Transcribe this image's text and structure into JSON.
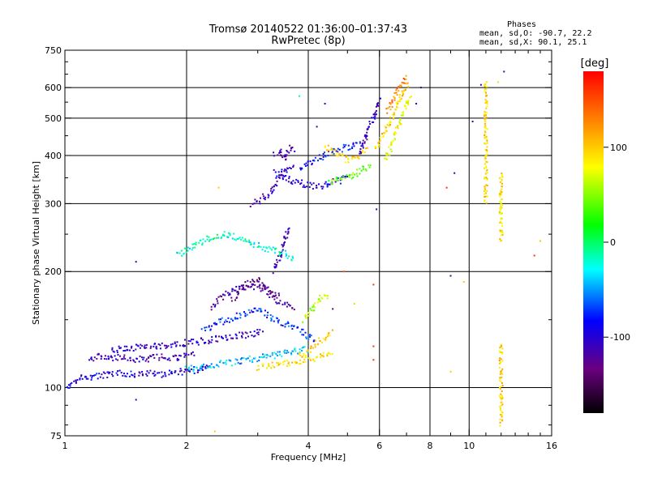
{
  "chart_data": {
    "type": "scatter",
    "title": "Tromsø 20140522 01:36:00–01:37:43",
    "subtitle": "RwPretec (8p)",
    "xlabel": "Frequency [MHz]",
    "ylabel": "Stationary phase Virtual Height [km]",
    "x_scale": "log",
    "y_scale": "log",
    "xlim": [
      1,
      16
    ],
    "ylim": [
      75,
      750
    ],
    "x_ticks": [
      1,
      2,
      4,
      6,
      8,
      10,
      16
    ],
    "x_tick_labels": [
      "1",
      "2",
      "4",
      "6",
      "8",
      "10",
      "16"
    ],
    "y_ticks": [
      75,
      100,
      200,
      300,
      400,
      500,
      600,
      750
    ],
    "y_tick_labels": [
      "75",
      "100",
      "200",
      "300",
      "400",
      "500",
      "600",
      "750"
    ],
    "grid": true,
    "x_gridlines": [
      2,
      4,
      6,
      8,
      10
    ],
    "y_gridlines": [
      100,
      200,
      300,
      400,
      500,
      600
    ],
    "colorbar": {
      "label": "[deg]",
      "range": [
        -180,
        180
      ],
      "ticks": [
        100,
        0,
        -100
      ],
      "tick_labels": [
        "100",
        "0",
        "-100"
      ]
    },
    "stats": {
      "heading": "Phases",
      "line_o": "mean, sd,O: -90.7, 22.2",
      "line_x": "mean, sd,X:  90.1, 25.1"
    },
    "traces": [
      {
        "x": [
          1.0,
          1.05,
          1.1,
          1.2,
          1.3,
          1.4,
          1.5,
          1.6,
          1.7,
          1.8,
          1.9,
          2.0,
          2.1,
          2.2,
          2.3
        ],
        "y": [
          98,
          103,
          106,
          107,
          108,
          109,
          108,
          109,
          108,
          109,
          110,
          110,
          111,
          112,
          113
        ],
        "phase": -95
      },
      {
        "x": [
          1.15,
          1.2,
          1.3,
          1.4,
          1.5,
          1.6,
          1.7,
          1.8,
          1.9,
          2.0,
          2.1
        ],
        "y": [
          118,
          120,
          120,
          119,
          118,
          119,
          120,
          120,
          119,
          121,
          122
        ],
        "phase": -110
      },
      {
        "x": [
          1.3,
          1.5,
          1.7,
          1.9,
          2.1,
          2.3,
          2.5,
          2.8,
          3.1
        ],
        "y": [
          125,
          127,
          128,
          130,
          131,
          133,
          135,
          137,
          140
        ],
        "phase": -105
      },
      {
        "x": [
          2.0,
          2.2,
          2.4,
          2.6,
          2.8,
          3.0,
          3.2,
          3.4,
          3.6,
          3.8,
          4.0
        ],
        "y": [
          112,
          113,
          115,
          116,
          118,
          119,
          121,
          122,
          124,
          125,
          126
        ],
        "phase": -40
      },
      {
        "x": [
          2.2,
          2.5,
          2.8,
          3.0,
          3.3,
          3.6,
          3.9,
          4.2
        ],
        "y": [
          140,
          150,
          155,
          160,
          150,
          145,
          138,
          132
        ],
        "phase": -75
      },
      {
        "x": [
          2.3,
          2.5,
          2.7,
          2.9,
          3.1,
          3.3,
          3.5,
          3.7
        ],
        "y": [
          160,
          175,
          180,
          185,
          178,
          170,
          165,
          160
        ],
        "phase": -120
      },
      {
        "x": [
          2.6,
          2.8,
          3.0,
          3.2,
          3.4
        ],
        "y": [
          170,
          185,
          190,
          180,
          172
        ],
        "phase": -130
      },
      {
        "x": [
          3.0,
          3.2,
          3.4,
          3.6,
          3.8,
          4.0,
          4.2,
          4.4,
          4.6
        ],
        "y": [
          113,
          114,
          115,
          116,
          117,
          118,
          120,
          122,
          125
        ],
        "phase": 90
      },
      {
        "x": [
          3.8,
          4.0,
          4.2,
          4.4,
          4.6
        ],
        "y": [
          120,
          125,
          130,
          135,
          140
        ],
        "phase": 100
      },
      {
        "x": [
          3.9,
          4.1,
          4.3,
          4.5
        ],
        "y": [
          150,
          160,
          170,
          175
        ],
        "phase": 60
      },
      {
        "x": [
          3.3,
          3.4,
          3.5,
          3.6
        ],
        "y": [
          200,
          220,
          240,
          260
        ],
        "phase": -110
      },
      {
        "x": [
          1.9,
          2.1,
          2.3,
          2.5,
          2.8,
          3.1,
          3.4,
          3.7
        ],
        "y": [
          220,
          235,
          245,
          250,
          240,
          230,
          225,
          215
        ],
        "phase": -20
      },
      {
        "x": [
          2.9,
          3.0,
          3.1,
          3.2,
          3.3,
          3.4,
          3.5,
          3.6,
          3.7
        ],
        "y": [
          300,
          305,
          310,
          320,
          335,
          350,
          365,
          375,
          380
        ],
        "phase": -110
      },
      {
        "x": [
          3.3,
          3.4,
          3.5,
          3.6,
          3.8,
          4.0,
          4.2,
          4.4,
          4.6,
          4.8,
          5.0
        ],
        "y": [
          360,
          355,
          350,
          345,
          340,
          335,
          333,
          335,
          340,
          345,
          352
        ],
        "phase": -100
      },
      {
        "x": [
          3.3,
          3.4,
          3.5,
          3.6,
          3.7
        ],
        "y": [
          400,
          410,
          395,
          420,
          405
        ],
        "phase": -120
      },
      {
        "x": [
          3.8,
          4.0,
          4.2,
          4.4,
          4.6,
          4.8,
          5.0,
          5.2,
          5.4
        ],
        "y": [
          370,
          380,
          390,
          400,
          410,
          415,
          420,
          425,
          430
        ],
        "phase": -85
      },
      {
        "x": [
          4.4,
          4.6,
          4.8,
          5.0,
          5.2,
          5.4,
          5.6
        ],
        "y": [
          420,
          410,
          400,
          390,
          395,
          405,
          415
        ],
        "phase": 90
      },
      {
        "x": [
          4.5,
          4.7,
          4.9,
          5.1,
          5.3,
          5.5,
          5.7
        ],
        "y": [
          340,
          345,
          350,
          355,
          360,
          370,
          380
        ],
        "phase": 40
      },
      {
        "x": [
          5.4,
          5.5,
          5.6,
          5.7,
          5.8,
          5.9,
          6.0
        ],
        "y": [
          400,
          430,
          460,
          480,
          500,
          530,
          560
        ],
        "phase": -110
      },
      {
        "x": [
          5.9,
          6.1,
          6.3,
          6.5,
          6.7,
          6.9,
          7.1
        ],
        "y": [
          420,
          450,
          480,
          510,
          550,
          590,
          620
        ],
        "phase": 100
      },
      {
        "x": [
          6.2,
          6.4,
          6.6,
          6.8,
          7.0,
          7.2
        ],
        "y": [
          390,
          420,
          460,
          500,
          540,
          570
        ],
        "phase": 75
      },
      {
        "x": [
          6.3,
          6.5,
          6.7,
          6.9,
          7.0
        ],
        "y": [
          520,
          560,
          600,
          620,
          640
        ],
        "phase": 130
      },
      {
        "x": [
          11.0,
          11.0,
          11.0,
          11.0,
          11.0,
          11.0,
          11.0,
          11.0,
          11.0
        ],
        "y": [
          620,
          580,
          520,
          480,
          440,
          400,
          360,
          330,
          300
        ],
        "phase": 95
      },
      {
        "x": [
          12.0,
          12.0,
          12.0,
          12.0,
          12.0,
          12.0,
          12.0
        ],
        "y": [
          360,
          340,
          320,
          300,
          280,
          260,
          240
        ],
        "phase": 90
      },
      {
        "x": [
          12.0,
          12.0,
          12.0
        ],
        "y": [
          130,
          120,
          80
        ],
        "phase": 100
      }
    ],
    "scatter_points": [
      {
        "x": 1.5,
        "y": 212,
        "phase": -110
      },
      {
        "x": 1.5,
        "y": 93,
        "phase": -110
      },
      {
        "x": 2.35,
        "y": 77,
        "phase": 100
      },
      {
        "x": 8.8,
        "y": 330,
        "phase": 160
      },
      {
        "x": 9.2,
        "y": 360,
        "phase": -100
      },
      {
        "x": 9.0,
        "y": 195,
        "phase": -120
      },
      {
        "x": 9.7,
        "y": 188,
        "phase": 100
      },
      {
        "x": 9.0,
        "y": 110,
        "phase": 100
      },
      {
        "x": 10.2,
        "y": 490,
        "phase": -110
      },
      {
        "x": 10.7,
        "y": 610,
        "phase": -110
      },
      {
        "x": 12.2,
        "y": 660,
        "phase": -120
      },
      {
        "x": 11.8,
        "y": 620,
        "phase": 60
      },
      {
        "x": 14.5,
        "y": 220,
        "phase": 160
      },
      {
        "x": 15.0,
        "y": 240,
        "phase": 100
      },
      {
        "x": 5.2,
        "y": 165,
        "phase": 60
      },
      {
        "x": 4.9,
        "y": 200,
        "phase": 150
      },
      {
        "x": 4.6,
        "y": 160,
        "phase": -140
      },
      {
        "x": 5.8,
        "y": 185,
        "phase": 160
      },
      {
        "x": 5.8,
        "y": 128,
        "phase": 160
      },
      {
        "x": 5.8,
        "y": 118,
        "phase": 160
      },
      {
        "x": 5.9,
        "y": 290,
        "phase": -110
      },
      {
        "x": 2.4,
        "y": 330,
        "phase": 100
      },
      {
        "x": 3.8,
        "y": 570,
        "phase": -10
      },
      {
        "x": 4.4,
        "y": 545,
        "phase": -110
      },
      {
        "x": 4.2,
        "y": 475,
        "phase": -110
      },
      {
        "x": 7.6,
        "y": 600,
        "phase": -110
      },
      {
        "x": 7.4,
        "y": 545,
        "phase": -110
      }
    ]
  }
}
